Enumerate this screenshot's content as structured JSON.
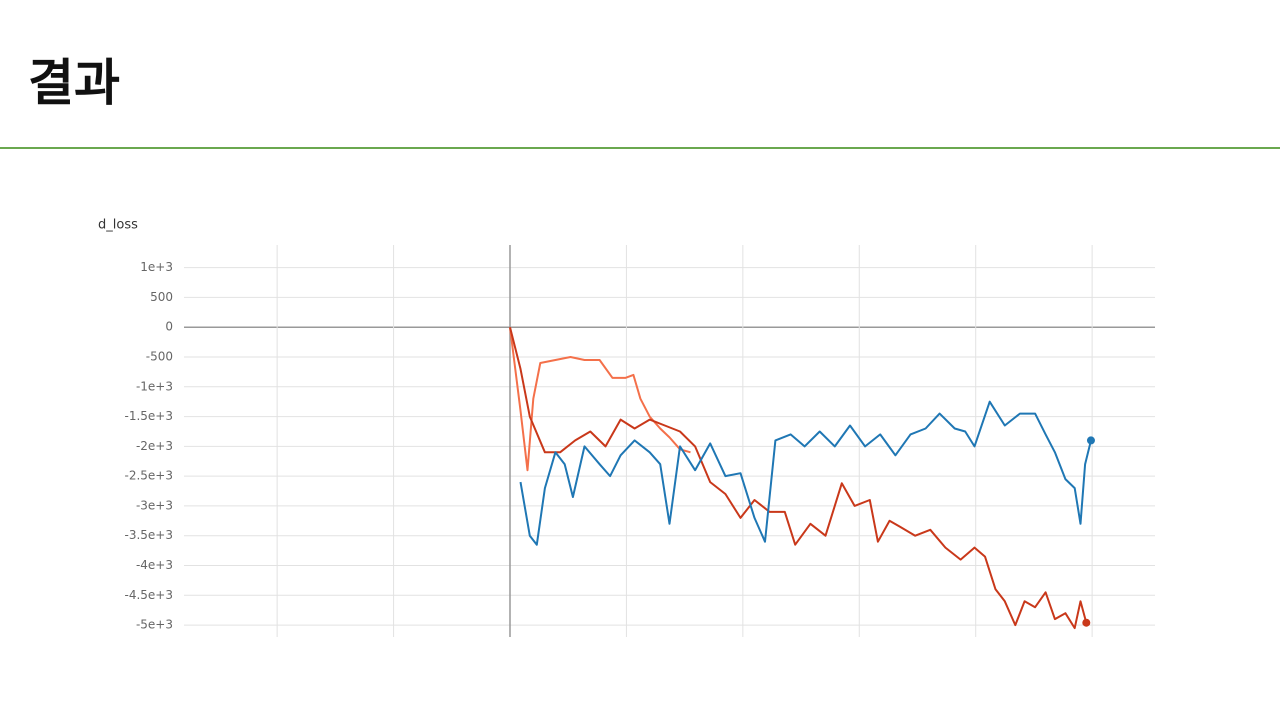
{
  "slide_title": "결과",
  "chart_data": {
    "type": "line",
    "title": "d_loss",
    "xlim": [
      -2.8,
      5.54
    ],
    "xticks": [
      -2,
      -1,
      0,
      1,
      2,
      3,
      4,
      5
    ],
    "ylim": [
      -5200,
      1380
    ],
    "yticks": [
      {
        "value": 1000,
        "label": "1e+3"
      },
      500,
      0,
      -500,
      {
        "value": -1000,
        "label": "-1e+3"
      },
      {
        "value": -1500,
        "label": "-1.5e+3"
      },
      {
        "value": -2000,
        "label": "-2e+3"
      },
      {
        "value": -2500,
        "label": "-2.5e+3"
      },
      {
        "value": -3000,
        "label": "-3e+3"
      },
      {
        "value": -3500,
        "label": "-3.5e+3"
      },
      {
        "value": -4000,
        "label": "-4e+3"
      },
      {
        "value": -4500,
        "label": "-4.5e+3"
      },
      {
        "value": -5000,
        "label": "-5e+3"
      }
    ],
    "grid": true,
    "series": [
      {
        "color": "#f4704a",
        "end_dot": false,
        "x": [
          0,
          0.09,
          0.15,
          0.2,
          0.26,
          0.39,
          0.52,
          0.64,
          0.77,
          0.88,
          0.99,
          1.06,
          1.12,
          1.2,
          1.29,
          1.37,
          1.46,
          1.55
        ],
        "values": [
          0,
          -1400,
          -2400,
          -1200,
          -600,
          -550,
          -500,
          -550,
          -550,
          -850,
          -850,
          -800,
          -1200,
          -1500,
          -1700,
          -1850,
          -2050,
          -2100
        ]
      },
      {
        "color": "#c9381a",
        "end_dot": true,
        "x": [
          0,
          0.09,
          0.17,
          0.3,
          0.43,
          0.56,
          0.69,
          0.82,
          0.95,
          1.07,
          1.2,
          1.33,
          1.46,
          1.59,
          1.72,
          1.85,
          1.98,
          2.1,
          2.23,
          2.36,
          2.45,
          2.58,
          2.71,
          2.85,
          2.96,
          3.09,
          3.16,
          3.26,
          3.35,
          3.48,
          3.61,
          3.74,
          3.87,
          3.99,
          4.08,
          4.17,
          4.25,
          4.34,
          4.42,
          4.51,
          4.6,
          4.68,
          4.77,
          4.85,
          4.9,
          4.95
        ],
        "values": [
          0,
          -700,
          -1500,
          -2100,
          -2100,
          -1900,
          -1750,
          -2000,
          -1550,
          -1700,
          -1550,
          -1650,
          -1750,
          -2000,
          -2600,
          -2800,
          -3200,
          -2900,
          -3100,
          -3100,
          -3650,
          -3300,
          -3500,
          -2620,
          -3000,
          -2900,
          -3600,
          -3250,
          -3350,
          -3500,
          -3400,
          -3700,
          -3900,
          -3700,
          -3850,
          -4400,
          -4600,
          -5000,
          -4600,
          -4700,
          -4450,
          -4900,
          -4800,
          -5050,
          -4600,
          -4960
        ]
      },
      {
        "color": "#1f77b4",
        "end_dot": true,
        "x": [
          0.09,
          0.17,
          0.23,
          0.3,
          0.39,
          0.47,
          0.54,
          0.64,
          0.77,
          0.86,
          0.95,
          1.07,
          1.2,
          1.29,
          1.37,
          1.46,
          1.59,
          1.72,
          1.85,
          1.98,
          2.1,
          2.19,
          2.28,
          2.41,
          2.53,
          2.66,
          2.79,
          2.92,
          3.05,
          3.18,
          3.31,
          3.44,
          3.57,
          3.69,
          3.82,
          3.91,
          3.99,
          4.12,
          4.25,
          4.38,
          4.51,
          4.6,
          4.68,
          4.77,
          4.85,
          4.9,
          4.94,
          4.99
        ],
        "values": [
          -2600,
          -3500,
          -3650,
          -2700,
          -2100,
          -2300,
          -2850,
          -2000,
          -2300,
          -2500,
          -2150,
          -1900,
          -2100,
          -2300,
          -3300,
          -2000,
          -2400,
          -1950,
          -2500,
          -2450,
          -3200,
          -3600,
          -1900,
          -1800,
          -2000,
          -1750,
          -2000,
          -1650,
          -2000,
          -1800,
          -2150,
          -1800,
          -1700,
          -1450,
          -1700,
          -1750,
          -2000,
          -1250,
          -1650,
          -1450,
          -1450,
          -1800,
          -2100,
          -2550,
          -2700,
          -3300,
          -2300,
          -1900
        ]
      }
    ]
  }
}
